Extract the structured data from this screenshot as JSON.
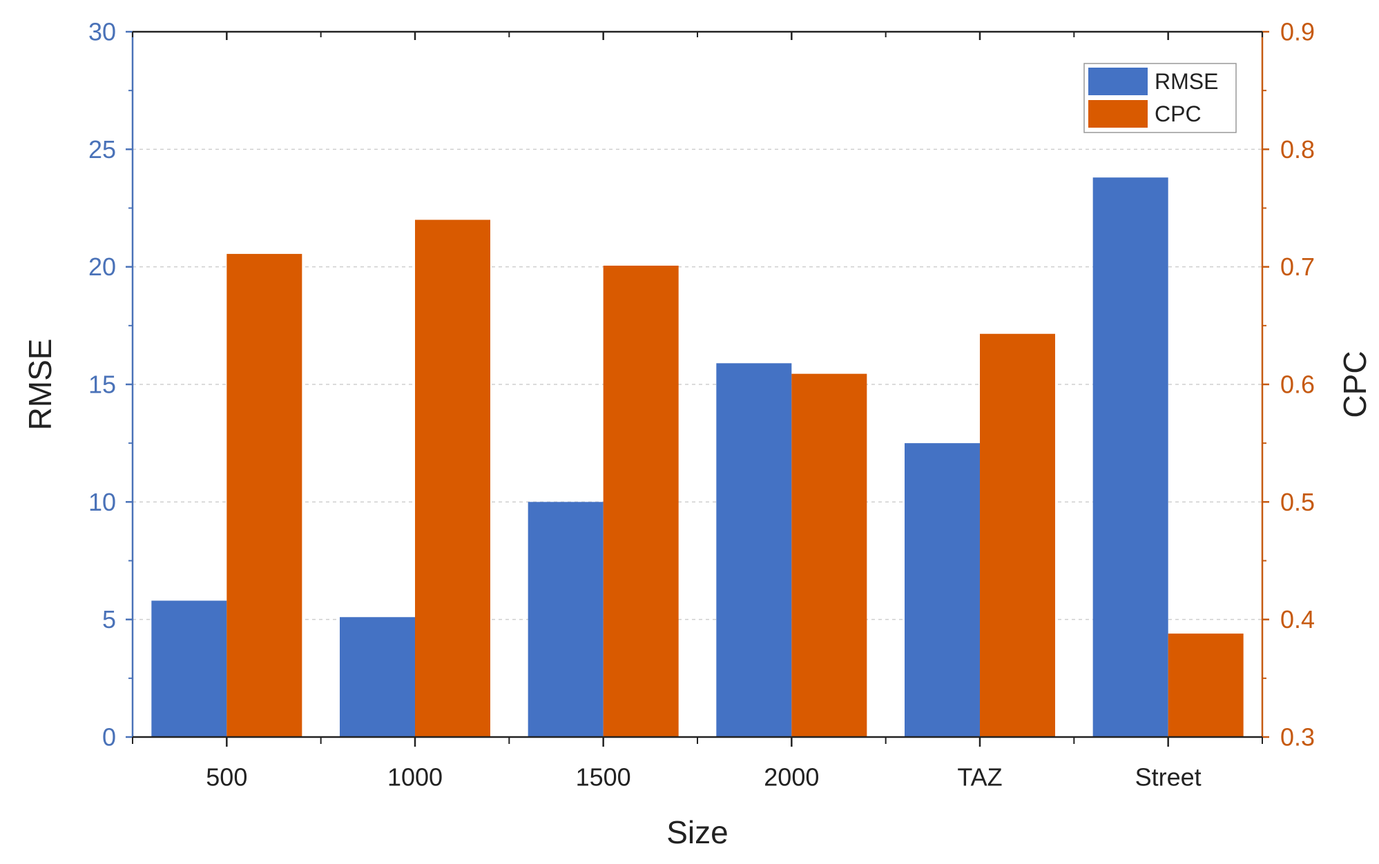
{
  "chart_data": {
    "type": "bar",
    "title": "",
    "xlabel": "Size",
    "ylabel": "RMSE",
    "y2label": "CPC",
    "categories": [
      "500",
      "1000",
      "1500",
      "2000",
      "TAZ",
      "Street"
    ],
    "series": [
      {
        "name": "RMSE",
        "axis": "left",
        "color": "#4472C4",
        "values": [
          5.8,
          5.1,
          10.0,
          15.9,
          12.5,
          23.8
        ]
      },
      {
        "name": "CPC",
        "axis": "right",
        "color": "#D95A00",
        "values": [
          0.711,
          0.74,
          0.701,
          0.609,
          0.643,
          0.388
        ]
      }
    ],
    "ylim": [
      0,
      30
    ],
    "y2lim": [
      0.3,
      0.9
    ],
    "yticks": [
      "0",
      "5",
      "10",
      "15",
      "20",
      "25",
      "30"
    ],
    "y2ticks": [
      "0.3",
      "0.4",
      "0.5",
      "0.6",
      "0.7",
      "0.8",
      "0.9"
    ],
    "grid": "horizontal dashed",
    "legend_position": "top-right",
    "axis_colors": {
      "left": "#4A72B8",
      "right": "#C65A11",
      "x": "#222222"
    }
  }
}
